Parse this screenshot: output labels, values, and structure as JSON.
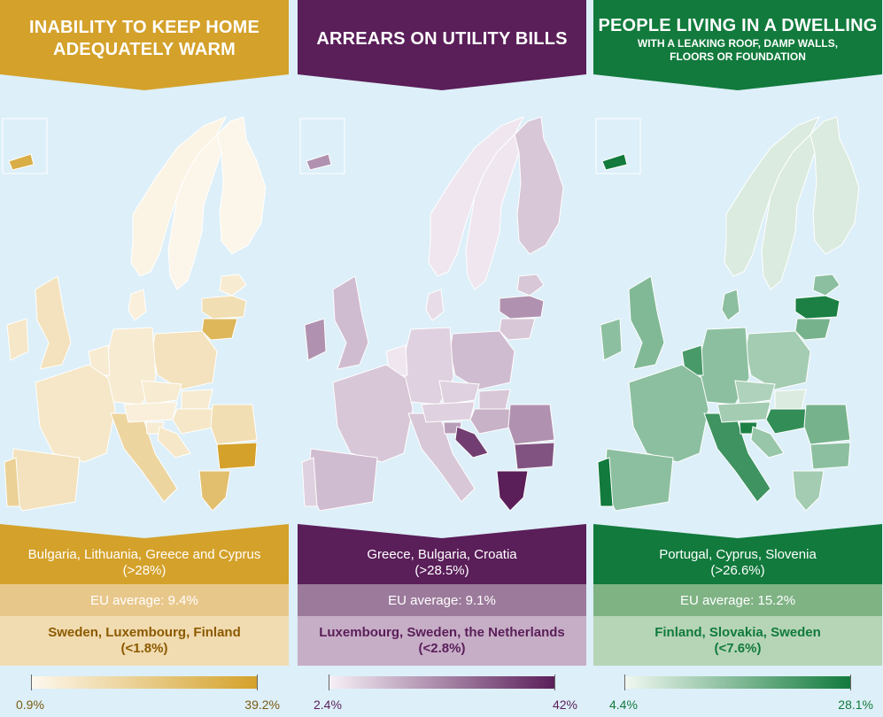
{
  "panels": [
    {
      "title": "INABILITY TO KEEP HOME ADEQUATELY WARM",
      "title_lines": [
        "INABILITY TO KEEP HOME",
        "ADEQUATELY WARM"
      ],
      "subtitle": "",
      "highest": "Bulgaria, Lithuania, Greece and Cyprus",
      "highest_value": "(>28%)",
      "average": "EU average: 9.4%",
      "lowest": "Sweden, Luxembourg, Finland",
      "lowest_value": "(<1.8%)",
      "scale_min": "0.9%",
      "scale_max": "39.2%",
      "colors": {
        "banner": "#d4a12a",
        "avg": "#e8c78b",
        "lowbox": "#f1dbb0",
        "lowtext": "#8b5a00",
        "scale_light": "#fdf8ee",
        "scale_dark": "#d4a12a",
        "scale_text": "#7a5a10"
      }
    },
    {
      "title": "ARREARS ON UTILITY BILLS",
      "title_lines": [
        "ARREARS ON UTILITY BILLS"
      ],
      "subtitle": "",
      "highest": "Greece, Bulgaria, Croatia",
      "highest_value": "(>28.5%)",
      "average": "EU average: 9.1%",
      "lowest": "Luxembourg, Sweden, the Netherlands",
      "lowest_value": "(<2.8%)",
      "scale_min": "2.4%",
      "scale_max": "42%",
      "colors": {
        "banner": "#5a1e59",
        "avg": "#9c7a9b",
        "lowbox": "#c7aec7",
        "lowtext": "#5a1e59",
        "scale_light": "#f7f1f7",
        "scale_dark": "#5a1e59",
        "scale_text": "#5a1e59"
      }
    },
    {
      "title": "PEOPLE LIVING IN A DWELLING",
      "title_lines": [
        "PEOPLE LIVING IN A DWELLING"
      ],
      "subtitle_lines": [
        "WITH A LEAKING ROOF, DAMP WALLS,",
        "FLOORS OR FOUNDATION"
      ],
      "highest": "Portugal, Cyprus, Slovenia",
      "highest_value": "(>26.6%)",
      "average": "EU average: 15.2%",
      "lowest": "Finland, Slovakia, Sweden",
      "lowest_value": "(<7.6%)",
      "scale_min": "4.4%",
      "scale_max": "28.1%",
      "colors": {
        "banner": "#117a3c",
        "avg": "#7fb384",
        "lowbox": "#b6d5b6",
        "lowtext": "#117a3c",
        "scale_light": "#f1f8f1",
        "scale_dark": "#117a3c",
        "scale_text": "#117a3c"
      }
    }
  ],
  "country_shades": [
    {
      "FI": 0.02,
      "SE": 0.02,
      "NO": 0.05,
      "EE": 0.15,
      "LV": 0.3,
      "LT": 0.75,
      "PL": 0.25,
      "DE": 0.15,
      "FR": 0.2,
      "ES": 0.25,
      "PT": 0.45,
      "IT": 0.4,
      "UK": 0.25,
      "IE": 0.2,
      "BG": 1.0,
      "GR": 0.65,
      "RO": 0.3,
      "HU": 0.2,
      "CY": 0.85,
      "HR": 0.2,
      "BX": 0.15,
      "AT": 0.1,
      "CZ": 0.15,
      "SK": 0.15,
      "SI": 0.15,
      "DK": 0.1,
      "MT": 0.5
    },
    {
      "FI": 0.2,
      "SE": 0.05,
      "NO": 0.05,
      "EE": 0.2,
      "LV": 0.45,
      "LT": 0.2,
      "PL": 0.25,
      "DE": 0.15,
      "FR": 0.2,
      "ES": 0.25,
      "PT": 0.15,
      "IT": 0.2,
      "UK": 0.25,
      "IE": 0.45,
      "BG": 0.75,
      "GR": 1.0,
      "RO": 0.45,
      "HU": 0.3,
      "CY": 0.45,
      "HR": 0.85,
      "BX": 0.05,
      "AT": 0.15,
      "CZ": 0.15,
      "SK": 0.2,
      "SI": 0.4,
      "DK": 0.1,
      "MT": 0.3
    },
    {
      "FI": 0.1,
      "SE": 0.1,
      "NO": 0.1,
      "EE": 0.45,
      "LV": 0.95,
      "LT": 0.55,
      "PL": 0.35,
      "DE": 0.45,
      "FR": 0.45,
      "ES": 0.45,
      "PT": 1.0,
      "IT": 0.8,
      "UK": 0.5,
      "IE": 0.45,
      "BG": 0.45,
      "GR": 0.35,
      "RO": 0.55,
      "HU": 0.85,
      "CY": 1.0,
      "HR": 0.4,
      "BX": 0.75,
      "AT": 0.35,
      "CZ": 0.3,
      "SK": 0.1,
      "SI": 0.95,
      "DK": 0.45,
      "MT": 0.5
    }
  ]
}
